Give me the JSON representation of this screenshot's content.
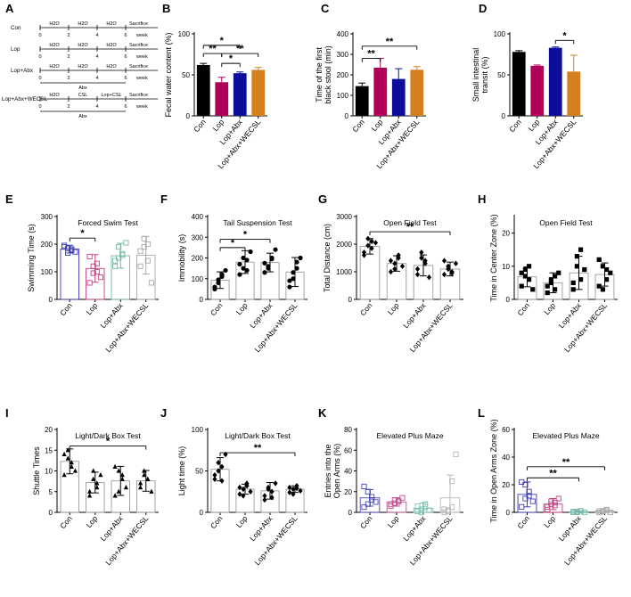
{
  "panel_a": {
    "letter": "A",
    "rows": [
      {
        "group": "Con",
        "segments": [
          "H2O",
          "H2O",
          "H2O"
        ],
        "end": "Sacrifice",
        "below": "",
        "ticks": [
          "0",
          "2",
          "4",
          "6",
          "week"
        ]
      },
      {
        "group": "Lop",
        "segments": [
          "H2O",
          "H2O",
          "H2O"
        ],
        "end": "Sacrifice",
        "below": "",
        "ticks": [
          "0",
          "2",
          "4",
          "6",
          "week"
        ]
      },
      {
        "group": "Lop+Abx",
        "segments": [
          "H2O",
          "H2O",
          "H2O"
        ],
        "end": "Sacrifice",
        "below": "Abx",
        "ticks": [
          "0",
          "2",
          "4",
          "6",
          "week"
        ]
      },
      {
        "group": "Lop+Abx+WECSL",
        "segments": [
          "H2O",
          "CSL",
          "Lop+CSL"
        ],
        "end": "Sacrifice",
        "below": "Abx",
        "ticks": [
          "0",
          "2",
          "4",
          "6",
          "week"
        ]
      }
    ]
  },
  "chart_data": [
    {
      "panel": "B",
      "type": "bar",
      "title": "",
      "ylabel": "Fecal water content (%)",
      "ylim": [
        0,
        100
      ],
      "yticks": [
        0,
        50,
        100
      ],
      "categories": [
        "Con",
        "Lop",
        "Lop+Abx",
        "Lop+Abx+WECSL"
      ],
      "colors": [
        "#000000",
        "#b0005a",
        "#0d0d9c",
        "#d4801f"
      ],
      "values": [
        62,
        41,
        52,
        56
      ],
      "errors": [
        2,
        6,
        1.5,
        3
      ],
      "significance": [
        {
          "from": 0,
          "to": 2,
          "label": "*",
          "y": 86
        },
        {
          "from": 0,
          "to": 1,
          "label": "**",
          "y": 76
        },
        {
          "from": 1,
          "to": 3,
          "label": "**",
          "y": 76
        },
        {
          "from": 1,
          "to": 2,
          "label": "*",
          "y": 64
        }
      ]
    },
    {
      "panel": "C",
      "type": "bar",
      "title": "",
      "ylabel": "Time of the first black stool (min)",
      "ylim": [
        0,
        400
      ],
      "yticks": [
        0,
        100,
        200,
        300,
        400
      ],
      "categories": [
        "Con",
        "Lop",
        "Lop+Abx",
        "Lop+Abx+WECSL"
      ],
      "colors": [
        "#000000",
        "#b0005a",
        "#0d0d9c",
        "#d4801f"
      ],
      "values": [
        145,
        235,
        180,
        225
      ],
      "errors": [
        15,
        45,
        50,
        15
      ],
      "significance": [
        {
          "from": 0,
          "to": 3,
          "label": "**",
          "y": 340
        },
        {
          "from": 0,
          "to": 1,
          "label": "**",
          "y": 280
        }
      ]
    },
    {
      "panel": "D",
      "type": "bar",
      "title": "",
      "ylabel": "Small intestinal transit (%)",
      "ylim": [
        0,
        100
      ],
      "yticks": [
        0,
        50,
        100
      ],
      "categories": [
        "Con",
        "Lop",
        "Lop+Abx",
        "Lop+Abx+WECSL"
      ],
      "colors": [
        "#000000",
        "#b0005a",
        "#0d0d9c",
        "#d4801f"
      ],
      "values": [
        78,
        61,
        83,
        54
      ],
      "errors": [
        1.5,
        1,
        1,
        20
      ],
      "significance": [
        {
          "from": 2,
          "to": 3,
          "label": "*",
          "y": 92
        }
      ]
    },
    {
      "panel": "E",
      "type": "scatter",
      "title": "Forced Swim Test",
      "ylabel": "Swimming Time (s)",
      "ylim": [
        0,
        300
      ],
      "yticks": [
        0,
        100,
        200,
        300
      ],
      "categories": [
        "Con",
        "Lop",
        "Lop+Abx",
        "Lop+Abx+WECSL"
      ],
      "colors": [
        "#3a3ab4",
        "#c2407f",
        "#77b7a8",
        "#a8a8a8"
      ],
      "marker": "square-open",
      "values": [
        182,
        112,
        158,
        160
      ],
      "errors": [
        14,
        50,
        45,
        68
      ],
      "points": [
        [
          195,
          185,
          178,
          172,
          190,
          168,
          182
        ],
        [
          155,
          120,
          100,
          80,
          60,
          95,
          130
        ],
        [
          140,
          190,
          160,
          205,
          120,
          150,
          165
        ],
        [
          120,
          220,
          140,
          60,
          175,
          190,
          200
        ]
      ],
      "significance": [
        {
          "from": 0,
          "to": 1,
          "label": "*",
          "y": 222
        }
      ]
    },
    {
      "panel": "F",
      "type": "scatter",
      "title": "Tail Suspension Test",
      "ylabel": "Immobility (s)",
      "ylim": [
        0,
        400
      ],
      "yticks": [
        0,
        100,
        200,
        300,
        400
      ],
      "categories": [
        "Con",
        "Lop",
        "Lop+Abx",
        "Lop+Abx+WECSL"
      ],
      "colors": [
        "#000000",
        "#000000",
        "#000000",
        "#000000"
      ],
      "marker": "circle",
      "values": [
        93,
        180,
        178,
        132
      ],
      "errors": [
        40,
        55,
        45,
        70
      ],
      "points": [
        [
          60,
          80,
          110,
          140,
          50,
          95,
          120
        ],
        [
          120,
          150,
          190,
          230,
          170,
          200,
          140
        ],
        [
          130,
          160,
          200,
          240,
          175,
          150,
          195
        ],
        [
          60,
          100,
          180,
          200,
          90,
          130,
          150
        ]
      ],
      "significance": [
        {
          "from": 0,
          "to": 2,
          "label": "*",
          "y": 290
        },
        {
          "from": 0,
          "to": 1,
          "label": "*",
          "y": 250
        }
      ]
    },
    {
      "panel": "G",
      "type": "scatter",
      "title": "Open Field Test",
      "ylabel": "Total Distance (cm)",
      "ylim": [
        0,
        3000
      ],
      "yticks": [
        0,
        1000,
        2000,
        3000
      ],
      "categories": [
        "Con",
        "Lop",
        "Lop+Abx",
        "Lop+Abx+WECSL"
      ],
      "colors": [
        "#000000",
        "#000000",
        "#000000",
        "#000000"
      ],
      "marker": "diamond",
      "values": [
        1920,
        1300,
        1230,
        1100
      ],
      "errors": [
        280,
        280,
        380,
        250
      ],
      "points": [
        [
          1600,
          2200,
          1850,
          2050,
          1700,
          1950,
          2100
        ],
        [
          1000,
          1300,
          1500,
          1200,
          1400,
          1100,
          1600
        ],
        [
          900,
          1500,
          1300,
          800,
          1100,
          1700,
          1400
        ],
        [
          900,
          1200,
          1000,
          1300,
          1400,
          1100,
          950
        ]
      ],
      "significance": [
        {
          "from": 0,
          "to": 3,
          "label": "**",
          "y": 2450
        }
      ]
    },
    {
      "panel": "H",
      "type": "scatter",
      "title": "Open Field Test",
      "ylabel": "Time in Center Zone (%)",
      "ylim": [
        0,
        25
      ],
      "yticks": [
        0,
        10,
        20
      ],
      "categories": [
        "Con",
        "Lop",
        "Lop+Abx",
        "Lop+Abx+WECSL"
      ],
      "colors": [
        "#000000",
        "#000000",
        "#000000",
        "#000000"
      ],
      "marker": "square",
      "values": [
        6.8,
        5.0,
        8.0,
        7.5
      ],
      "errors": [
        3,
        3,
        5,
        3.5
      ],
      "points": [
        [
          4,
          9,
          6,
          3,
          8,
          7,
          10
        ],
        [
          2,
          5,
          3,
          8,
          4,
          6,
          7
        ],
        [
          3,
          13,
          6,
          9,
          5,
          10,
          15
        ],
        [
          4,
          10,
          6,
          8,
          12,
          3,
          9
        ]
      ],
      "significance": []
    },
    {
      "panel": "I",
      "type": "scatter",
      "title": "Light/Dark Box Test",
      "ylabel": "Shuttle Times",
      "ylim": [
        0,
        20
      ],
      "yticks": [
        0,
        5,
        10,
        15,
        20
      ],
      "categories": [
        "Con",
        "Lop",
        "Lop+Abx",
        "Lop+Abx+WECSL"
      ],
      "colors": [
        "#000000",
        "#000000",
        "#000000",
        "#000000"
      ],
      "marker": "triangle",
      "values": [
        12.3,
        7.2,
        7.6,
        7.6
      ],
      "errors": [
        3,
        2.5,
        3.5,
        2.5
      ],
      "points": [
        [
          9,
          15,
          12,
          10,
          14,
          13,
          11
        ],
        [
          5,
          8,
          6,
          9,
          4,
          10,
          7
        ],
        [
          4,
          10,
          8,
          6,
          11,
          5,
          9
        ],
        [
          6,
          10,
          8,
          5,
          7,
          9,
          8
        ]
      ],
      "significance": [
        {
          "from": 0,
          "to": 3,
          "label": "*",
          "y": 16
        }
      ]
    },
    {
      "panel": "J",
      "type": "scatter",
      "title": "Light/Dark Box Test",
      "ylabel": "Light time (%)",
      "ylim": [
        0,
        100
      ],
      "yticks": [
        0,
        50,
        100
      ],
      "categories": [
        "Con",
        "Lop",
        "Lop+Abx",
        "Lop+Abx+WECSL"
      ],
      "colors": [
        "#000000",
        "#000000",
        "#000000",
        "#000000"
      ],
      "marker": "diamond",
      "values": [
        52,
        28,
        26,
        28
      ],
      "errors": [
        14,
        6,
        10,
        4
      ],
      "points": [
        [
          40,
          60,
          55,
          70,
          45,
          50,
          38
        ],
        [
          22,
          28,
          35,
          25,
          30,
          20,
          32
        ],
        [
          15,
          30,
          25,
          35,
          20,
          28,
          18
        ],
        [
          24,
          28,
          32,
          26,
          30,
          22,
          29
        ]
      ],
      "significance": [
        {
          "from": 0,
          "to": 3,
          "label": "**",
          "y": 72
        }
      ]
    },
    {
      "panel": "K",
      "type": "scatter",
      "title": "Elevated Plus Maze",
      "ylabel": "Entries into the Open Arms (%)",
      "ylim": [
        0,
        80
      ],
      "yticks": [
        0,
        20,
        40,
        60,
        80
      ],
      "categories": [
        "Con",
        "Lop",
        "Lop+Abx",
        "Lop+Abx+WECSL"
      ],
      "colors": [
        "#4545b8",
        "#c44e8c",
        "#7cc0b0",
        "#b8b8b8"
      ],
      "marker": "square-open",
      "values": [
        14,
        10,
        4,
        14
      ],
      "errors": [
        8,
        4,
        5,
        22
      ],
      "points": [
        [
          5,
          20,
          15,
          10,
          25,
          8,
          12
        ],
        [
          6,
          12,
          10,
          14,
          8,
          9,
          11
        ],
        [
          1,
          3,
          8,
          2,
          6,
          0,
          5
        ],
        [
          0,
          2,
          5,
          56,
          3,
          1,
          30
        ]
      ],
      "significance": []
    },
    {
      "panel": "L",
      "type": "scatter",
      "title": "Elevated Plus Maze",
      "ylabel": "Time in Open Arms Zone (%)",
      "ylim": [
        0,
        60
      ],
      "yticks": [
        0,
        20,
        40,
        60
      ],
      "categories": [
        "Con",
        "Lop",
        "Lop+Abx",
        "Lop+Abx+WECSL"
      ],
      "colors": [
        "#3a3ab4",
        "#c2407f",
        "#77b7a8",
        "#a8a8a8"
      ],
      "marker": "square-open",
      "values": [
        13,
        6,
        0.5,
        1
      ],
      "errors": [
        9,
        4,
        0.5,
        1
      ],
      "points": [
        [
          4,
          20,
          15,
          8,
          22,
          10,
          12
        ],
        [
          2,
          8,
          5,
          10,
          4,
          6,
          7
        ],
        [
          0,
          0.5,
          1,
          0,
          0.5,
          0,
          1
        ],
        [
          0,
          1,
          2,
          0,
          1,
          0.5,
          1.5
        ]
      ],
      "significance": [
        {
          "from": 0,
          "to": 3,
          "label": "**",
          "y": 33
        },
        {
          "from": 0,
          "to": 2,
          "label": "**",
          "y": 25
        }
      ]
    }
  ]
}
